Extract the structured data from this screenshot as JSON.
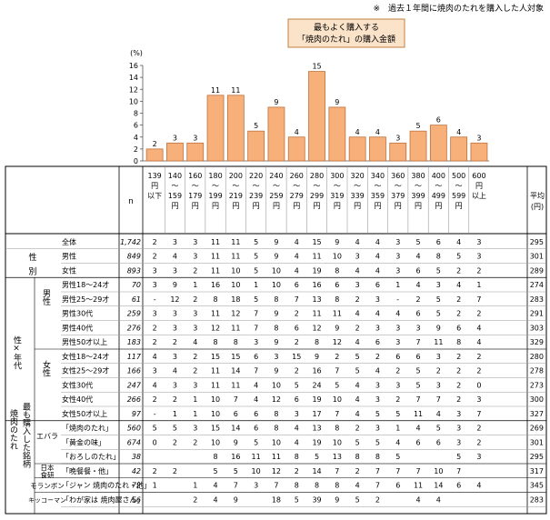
{
  "note": "※　過去１年間に焼肉のたれを購入した人対象",
  "chart_data": {
    "type": "bar",
    "title_lines": [
      "最もよく購入する",
      "「焼肉のたれ」の購入金額"
    ],
    "ylabel": "(%)",
    "ylim": [
      0,
      16
    ],
    "yticks": [
      "0",
      "2",
      "4",
      "6",
      "8",
      "10",
      "12",
      "14",
      "16"
    ],
    "categories": [
      "139円以下",
      "140～159円",
      "160～179円",
      "180～199円",
      "200～219円",
      "220～239円",
      "240～259円",
      "260～279円",
      "280～299円",
      "300～319円",
      "320～339円",
      "340～359円",
      "360～379円",
      "380～399円",
      "400～499円",
      "500～599円",
      "600円以上"
    ],
    "values": [
      2,
      3,
      3,
      11,
      11,
      5,
      9,
      4,
      15,
      9,
      4,
      4,
      3,
      5,
      6,
      4,
      3
    ],
    "bar_color": "#f8b07a",
    "bar_edge": "#c0703a"
  },
  "table": {
    "col_headers": [
      [
        "139",
        "円",
        "以下"
      ],
      [
        "140",
        "～",
        "159",
        "円"
      ],
      [
        "160",
        "～",
        "179",
        "円"
      ],
      [
        "180",
        "～",
        "199",
        "円"
      ],
      [
        "200",
        "～",
        "219",
        "円"
      ],
      [
        "220",
        "～",
        "239",
        "円"
      ],
      [
        "240",
        "～",
        "259",
        "円"
      ],
      [
        "260",
        "～",
        "279",
        "円"
      ],
      [
        "280",
        "～",
        "299",
        "円"
      ],
      [
        "300",
        "～",
        "319",
        "円"
      ],
      [
        "320",
        "～",
        "339",
        "円"
      ],
      [
        "340",
        "～",
        "359",
        "円"
      ],
      [
        "360",
        "～",
        "379",
        "円"
      ],
      [
        "380",
        "～",
        "399",
        "円"
      ],
      [
        "400",
        "～",
        "499",
        "円"
      ],
      [
        "500",
        "～",
        "599",
        "円"
      ],
      [
        "600",
        "円",
        "以上"
      ]
    ],
    "n_header": "n",
    "avg_header": [
      "平均",
      "(円)"
    ],
    "group_labels": {
      "seibetsu": "性別",
      "seinendai": "性×年代",
      "dansei": "男性",
      "josei": "女性",
      "brand": "焼肉のたれ最も購入した銘柄",
      "ebara": "エバラ",
      "nihon_shokken": "日本食研",
      "moranbong": "モランボン",
      "kikkoman": "キッコーマン"
    },
    "rows": [
      {
        "label": "全体",
        "n": "1,742",
        "vals": [
          "2",
          "3",
          "3",
          "11",
          "11",
          "5",
          "9",
          "4",
          "15",
          "9",
          "4",
          "4",
          "3",
          "5",
          "6",
          "4",
          "3"
        ],
        "avg": "295"
      },
      {
        "label": "男性",
        "n": "849",
        "vals": [
          "2",
          "4",
          "3",
          "11",
          "11",
          "5",
          "9",
          "4",
          "11",
          "10",
          "3",
          "4",
          "3",
          "4",
          "8",
          "5",
          "3"
        ],
        "avg": "301"
      },
      {
        "label": "女性",
        "n": "893",
        "vals": [
          "3",
          "3",
          "2",
          "11",
          "10",
          "5",
          "10",
          "4",
          "19",
          "8",
          "4",
          "4",
          "3",
          "6",
          "5",
          "2",
          "2"
        ],
        "avg": "289"
      },
      {
        "label": "男性18～24才",
        "n": "70",
        "vals": [
          "3",
          "9",
          "1",
          "16",
          "10",
          "1",
          "10",
          "6",
          "16",
          "6",
          "3",
          "6",
          "1",
          "4",
          "3",
          "4",
          "1"
        ],
        "avg": "274"
      },
      {
        "label": "男性25～29才",
        "n": "61",
        "vals": [
          "-",
          "12",
          "2",
          "8",
          "18",
          "5",
          "8",
          "7",
          "13",
          "8",
          "2",
          "3",
          "-",
          "2",
          "5",
          "2",
          "7"
        ],
        "avg": "283"
      },
      {
        "label": "男性30代",
        "n": "259",
        "vals": [
          "3",
          "3",
          "3",
          "11",
          "12",
          "7",
          "9",
          "2",
          "11",
          "11",
          "4",
          "4",
          "4",
          "6",
          "5",
          "2",
          "2"
        ],
        "avg": "291"
      },
      {
        "label": "男性40代",
        "n": "276",
        "vals": [
          "2",
          "3",
          "3",
          "12",
          "11",
          "7",
          "8",
          "6",
          "12",
          "9",
          "2",
          "3",
          "3",
          "3",
          "9",
          "6",
          "4"
        ],
        "avg": "303"
      },
      {
        "label": "男性50才以上",
        "n": "183",
        "vals": [
          "2",
          "2",
          "4",
          "8",
          "8",
          "3",
          "9",
          "2",
          "8",
          "12",
          "4",
          "6",
          "3",
          "7",
          "11",
          "8",
          "4"
        ],
        "avg": "329"
      },
      {
        "label": "女性18～24才",
        "n": "117",
        "vals": [
          "4",
          "3",
          "2",
          "15",
          "15",
          "6",
          "3",
          "15",
          "9",
          "2",
          "5",
          "2",
          "6",
          "6",
          "3",
          "2",
          "2"
        ],
        "avg": "280"
      },
      {
        "label": "女性25～29才",
        "n": "166",
        "vals": [
          "3",
          "4",
          "2",
          "11",
          "14",
          "7",
          "9",
          "2",
          "16",
          "7",
          "5",
          "4",
          "2",
          "5",
          "2",
          "2",
          "2"
        ],
        "avg": "278"
      },
      {
        "label": "女性30代",
        "n": "247",
        "vals": [
          "4",
          "3",
          "3",
          "11",
          "11",
          "4",
          "10",
          "5",
          "24",
          "5",
          "4",
          "3",
          "3",
          "5",
          "3",
          "2",
          "0"
        ],
        "avg": "273"
      },
      {
        "label": "女性40代",
        "n": "266",
        "vals": [
          "2",
          "2",
          "1",
          "10",
          "7",
          "4",
          "12",
          "6",
          "19",
          "10",
          "4",
          "3",
          "2",
          "7",
          "7",
          "2",
          "3"
        ],
        "avg": "300"
      },
      {
        "label": "女性50才以上",
        "n": "97",
        "vals": [
          "-",
          "1",
          "1",
          "10",
          "6",
          "6",
          "8",
          "3",
          "17",
          "7",
          "4",
          "5",
          "5",
          "11",
          "4",
          "3",
          "7"
        ],
        "avg": "327"
      },
      {
        "label": "「焼肉のたれ」",
        "n": "560",
        "vals": [
          "5",
          "5",
          "3",
          "15",
          "14",
          "6",
          "8",
          "4",
          "13",
          "8",
          "2",
          "3",
          "1",
          "4",
          "5",
          "3",
          "2"
        ],
        "avg": "269"
      },
      {
        "label": "「黄金の味」",
        "n": "674",
        "vals": [
          "0",
          "2",
          "2",
          "10",
          "9",
          "5",
          "10",
          "4",
          "19",
          "10",
          "5",
          "5",
          "4",
          "6",
          "6",
          "3",
          "2"
        ],
        "avg": "301"
      },
      {
        "label": "「おろしのたれ」",
        "n": "38",
        "vals": [
          "",
          "",
          "",
          "8",
          "16",
          "11",
          "11",
          "8",
          "5",
          "13",
          "8",
          "8",
          "5",
          "",
          "",
          "5",
          "3"
        ],
        "avg": "295"
      },
      {
        "label": "「晩餐餐・他」",
        "n": "42",
        "vals": [
          "2",
          "2",
          "",
          "5",
          "5",
          "10",
          "12",
          "2",
          "14",
          "7",
          "2",
          "7",
          "7",
          "7",
          "10",
          "7",
          ""
        ],
        "avg": "317"
      },
      {
        "label": "「ジャン 焼肉のたれ・他」",
        "n": "72",
        "vals": [
          "1",
          "",
          "1",
          "4",
          "7",
          "3",
          "7",
          "8",
          "8",
          "8",
          "4",
          "7",
          "6",
          "11",
          "14",
          "6",
          "4"
        ],
        "avg": "345"
      },
      {
        "label": "「わが家は 焼肉屋さん」",
        "n": "56",
        "vals": [
          "",
          "",
          "2",
          "4",
          "9",
          "",
          "18",
          "5",
          "39",
          "9",
          "5",
          "2",
          "",
          "4",
          "4",
          "",
          ""
        ],
        "avg": "283"
      }
    ]
  }
}
